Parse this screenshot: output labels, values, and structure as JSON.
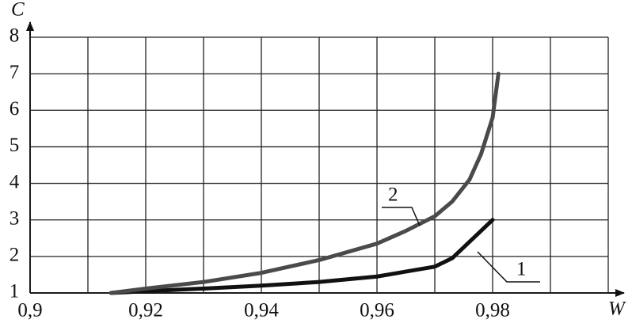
{
  "chart_data": {
    "type": "line",
    "x_label": "W",
    "y_label": "C",
    "series": [
      {
        "name": "1",
        "color": "#111111",
        "x": [
          0.914,
          0.92,
          0.93,
          0.94,
          0.95,
          0.96,
          0.97,
          0.973,
          0.98
        ],
        "values": [
          1.0,
          1.05,
          1.12,
          1.2,
          1.3,
          1.45,
          1.72,
          1.95,
          3.0
        ]
      },
      {
        "name": "2",
        "color": "#4a4a4a",
        "x": [
          0.914,
          0.92,
          0.93,
          0.94,
          0.95,
          0.96,
          0.965,
          0.97,
          0.973,
          0.976,
          0.978,
          0.98,
          0.981
        ],
        "values": [
          1.0,
          1.12,
          1.3,
          1.55,
          1.9,
          2.35,
          2.7,
          3.1,
          3.5,
          4.1,
          4.8,
          5.8,
          7.0
        ]
      }
    ],
    "xlim": [
      0.9,
      1.0
    ],
    "ylim": [
      1,
      8
    ],
    "xticks": [
      {
        "value": 0.9,
        "label": "0,9"
      },
      {
        "value": 0.92,
        "label": "0,92"
      },
      {
        "value": 0.94,
        "label": "0,94"
      },
      {
        "value": 0.96,
        "label": "0,96"
      },
      {
        "value": 0.98,
        "label": "0,98"
      }
    ],
    "xgrid": [
      0.91,
      0.93,
      0.95,
      0.97,
      0.99,
      1.0
    ],
    "yticks": [
      1,
      2,
      3,
      4,
      5,
      6,
      7,
      8
    ],
    "grid": true
  }
}
